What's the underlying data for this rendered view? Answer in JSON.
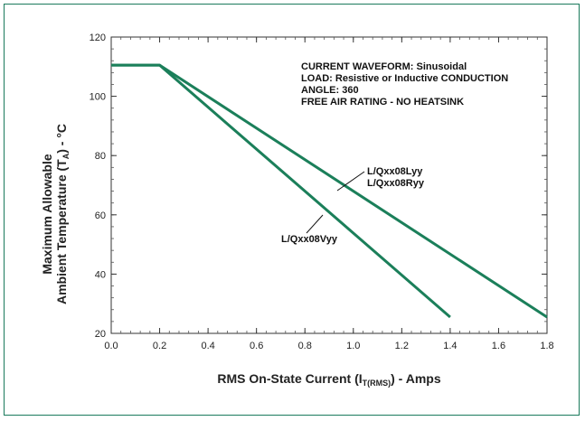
{
  "chart_data": {
    "type": "line",
    "xlabel_parts": [
      "RMS On-State Current (I",
      "T(RMS)",
      ") - Amps"
    ],
    "ylabel_line1": "Maximum Allowable",
    "ylabel_line2_parts": [
      "Ambient Temperature (T",
      "A",
      ") - °C"
    ],
    "xlim": [
      0,
      1.8
    ],
    "ylim": [
      20,
      120
    ],
    "xticks": [
      0.0,
      0.2,
      0.4,
      0.6,
      0.8,
      1.0,
      1.2,
      1.4,
      1.6,
      1.8
    ],
    "xtick_labels": [
      "0.0",
      "0.2",
      "0.4",
      "0.6",
      "0.8",
      "1.0",
      "1.2",
      "1.4",
      "1.6",
      "1.8"
    ],
    "yticks": [
      20,
      40,
      60,
      80,
      100,
      120
    ],
    "ytick_labels": [
      "20",
      "40",
      "60",
      "80",
      "100",
      "120"
    ],
    "minor_x_per_major": 5,
    "minor_y_per_major": 5,
    "grid": false,
    "line_color": "#1b7f5a",
    "series": [
      {
        "name": "L/Qxx08Lyy L/Qxx08Ryy",
        "x": [
          0.0,
          0.2,
          1.8
        ],
        "y": [
          110.5,
          110.5,
          25.5
        ]
      },
      {
        "name": "L/Qxx08Vyy",
        "x": [
          0.0,
          0.2,
          1.4
        ],
        "y": [
          110.5,
          110.5,
          25.5
        ]
      }
    ],
    "annotation_lines": [
      "CURRENT WAVEFORM: Sinusoidal",
      "LOAD: Resistive or Inductive CONDUCTION",
      "ANGLE: 360",
      "FREE AIR RATING  - NO HEATSINK"
    ],
    "series_labels": [
      {
        "lines": [
          "L/Qxx08Lyy",
          "L/Qxx08Ryy"
        ],
        "at": [
          1.19,
          68
        ]
      },
      {
        "lines": [
          "L/Qxx08Vyy"
        ],
        "at": [
          0.78,
          51.5
        ]
      }
    ]
  }
}
